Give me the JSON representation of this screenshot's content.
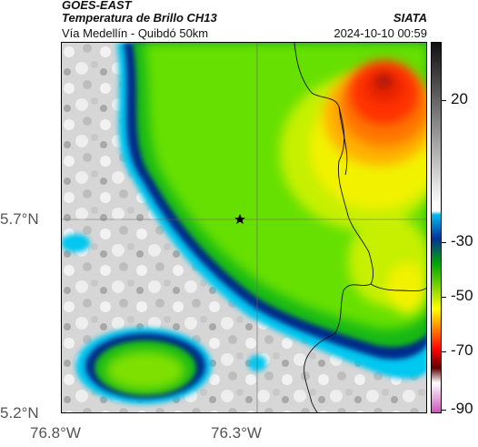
{
  "header": {
    "line1": "GOES-EAST",
    "line2": "Temperatura de Brillo CH13",
    "line3": "Vía Medellín - Quibdó 50km",
    "right1": "SIATA",
    "right2": "2024-10-10 00:59"
  },
  "axes": {
    "lat_labels": [
      "5.7°N",
      "5.2°N"
    ],
    "lon_labels": [
      "76.8°W",
      "76.3°W"
    ]
  },
  "colorbar": {
    "tick_labels": [
      "20",
      "-30",
      "-50",
      "-70",
      "-90"
    ],
    "colors": [
      "#111111",
      "#ffffff",
      "#00bbee",
      "#003399",
      "#00aa00",
      "#ffff00",
      "#ff0000",
      "#600000",
      "#cc55bb"
    ]
  },
  "marker": {
    "icon": "star-icon"
  },
  "colors": {
    "cold_cloud_red": "#e82000",
    "orange": "#ff7700",
    "yellow": "#f2f200",
    "green": "#66e000",
    "deep_green": "#18b818",
    "blue": "#002a8c",
    "cyan": "#00c8f0",
    "land_gray": "#d8d8d8"
  }
}
